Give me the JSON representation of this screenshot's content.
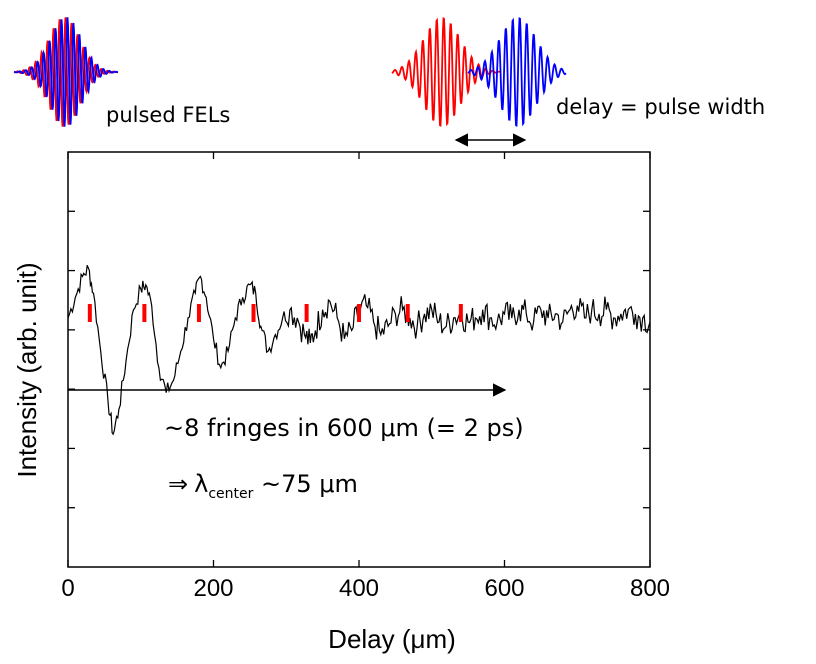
{
  "annotations": {
    "pulsed_label": "pulsed FELs",
    "delay_label": "delay = pulse width",
    "fringes_text": "~8 fringes in 600 μm (= 2 ps)",
    "lambda_arrow": "⇒",
    "lambda_symbol": "λ",
    "lambda_sub": "center",
    "lambda_value": " ~75 μm"
  },
  "colors": {
    "pulse_a": "#ff0000",
    "pulse_b": "#0000ff",
    "trace": "#000000",
    "fringe_markers": "#ff0000"
  },
  "chart_data": {
    "type": "line",
    "title": "",
    "xlabel": "Delay (μm)",
    "ylabel": "Intensity (arb. unit)",
    "xlim": [
      0,
      800
    ],
    "x_ticks": [
      0,
      200,
      400,
      600,
      800
    ],
    "y_tick_labels": false,
    "grid": false,
    "fringe_markers_x": [
      30,
      105,
      180,
      255,
      328,
      400,
      467,
      540
    ],
    "series": [
      {
        "x": [
          0,
          10,
          20,
          28,
          35,
          45,
          55,
          62,
          70,
          80,
          90,
          100,
          107,
          115,
          125,
          135,
          145,
          155,
          165,
          175,
          182,
          190,
          200,
          210,
          220,
          230,
          240,
          250,
          258,
          265,
          275,
          285,
          295,
          305,
          315,
          325,
          333,
          340,
          350,
          360,
          370,
          380,
          390,
          400,
          410,
          420,
          430,
          440,
          450,
          460,
          470,
          480,
          490,
          500,
          510,
          520,
          530,
          540,
          550,
          560,
          570,
          580,
          590,
          600,
          610,
          620,
          630,
          640,
          650,
          660,
          670,
          680,
          690,
          700,
          710,
          720,
          730,
          740,
          750,
          760,
          770,
          780,
          790,
          800
        ],
        "values": [
          0.6,
          0.65,
          0.7,
          0.72,
          0.66,
          0.52,
          0.4,
          0.32,
          0.38,
          0.5,
          0.62,
          0.67,
          0.68,
          0.63,
          0.48,
          0.42,
          0.45,
          0.52,
          0.6,
          0.66,
          0.7,
          0.65,
          0.55,
          0.48,
          0.52,
          0.6,
          0.65,
          0.68,
          0.66,
          0.58,
          0.52,
          0.56,
          0.6,
          0.62,
          0.6,
          0.56,
          0.54,
          0.57,
          0.62,
          0.64,
          0.6,
          0.55,
          0.57,
          0.62,
          0.63,
          0.59,
          0.56,
          0.58,
          0.61,
          0.62,
          0.6,
          0.58,
          0.61,
          0.62,
          0.59,
          0.58,
          0.6,
          0.61,
          0.59,
          0.6,
          0.62,
          0.6,
          0.59,
          0.61,
          0.6,
          0.62,
          0.61,
          0.59,
          0.62,
          0.6,
          0.61,
          0.59,
          0.62,
          0.63,
          0.6,
          0.62,
          0.61,
          0.62,
          0.6,
          0.61,
          0.62,
          0.61,
          0.6,
          0.59
        ]
      }
    ]
  }
}
